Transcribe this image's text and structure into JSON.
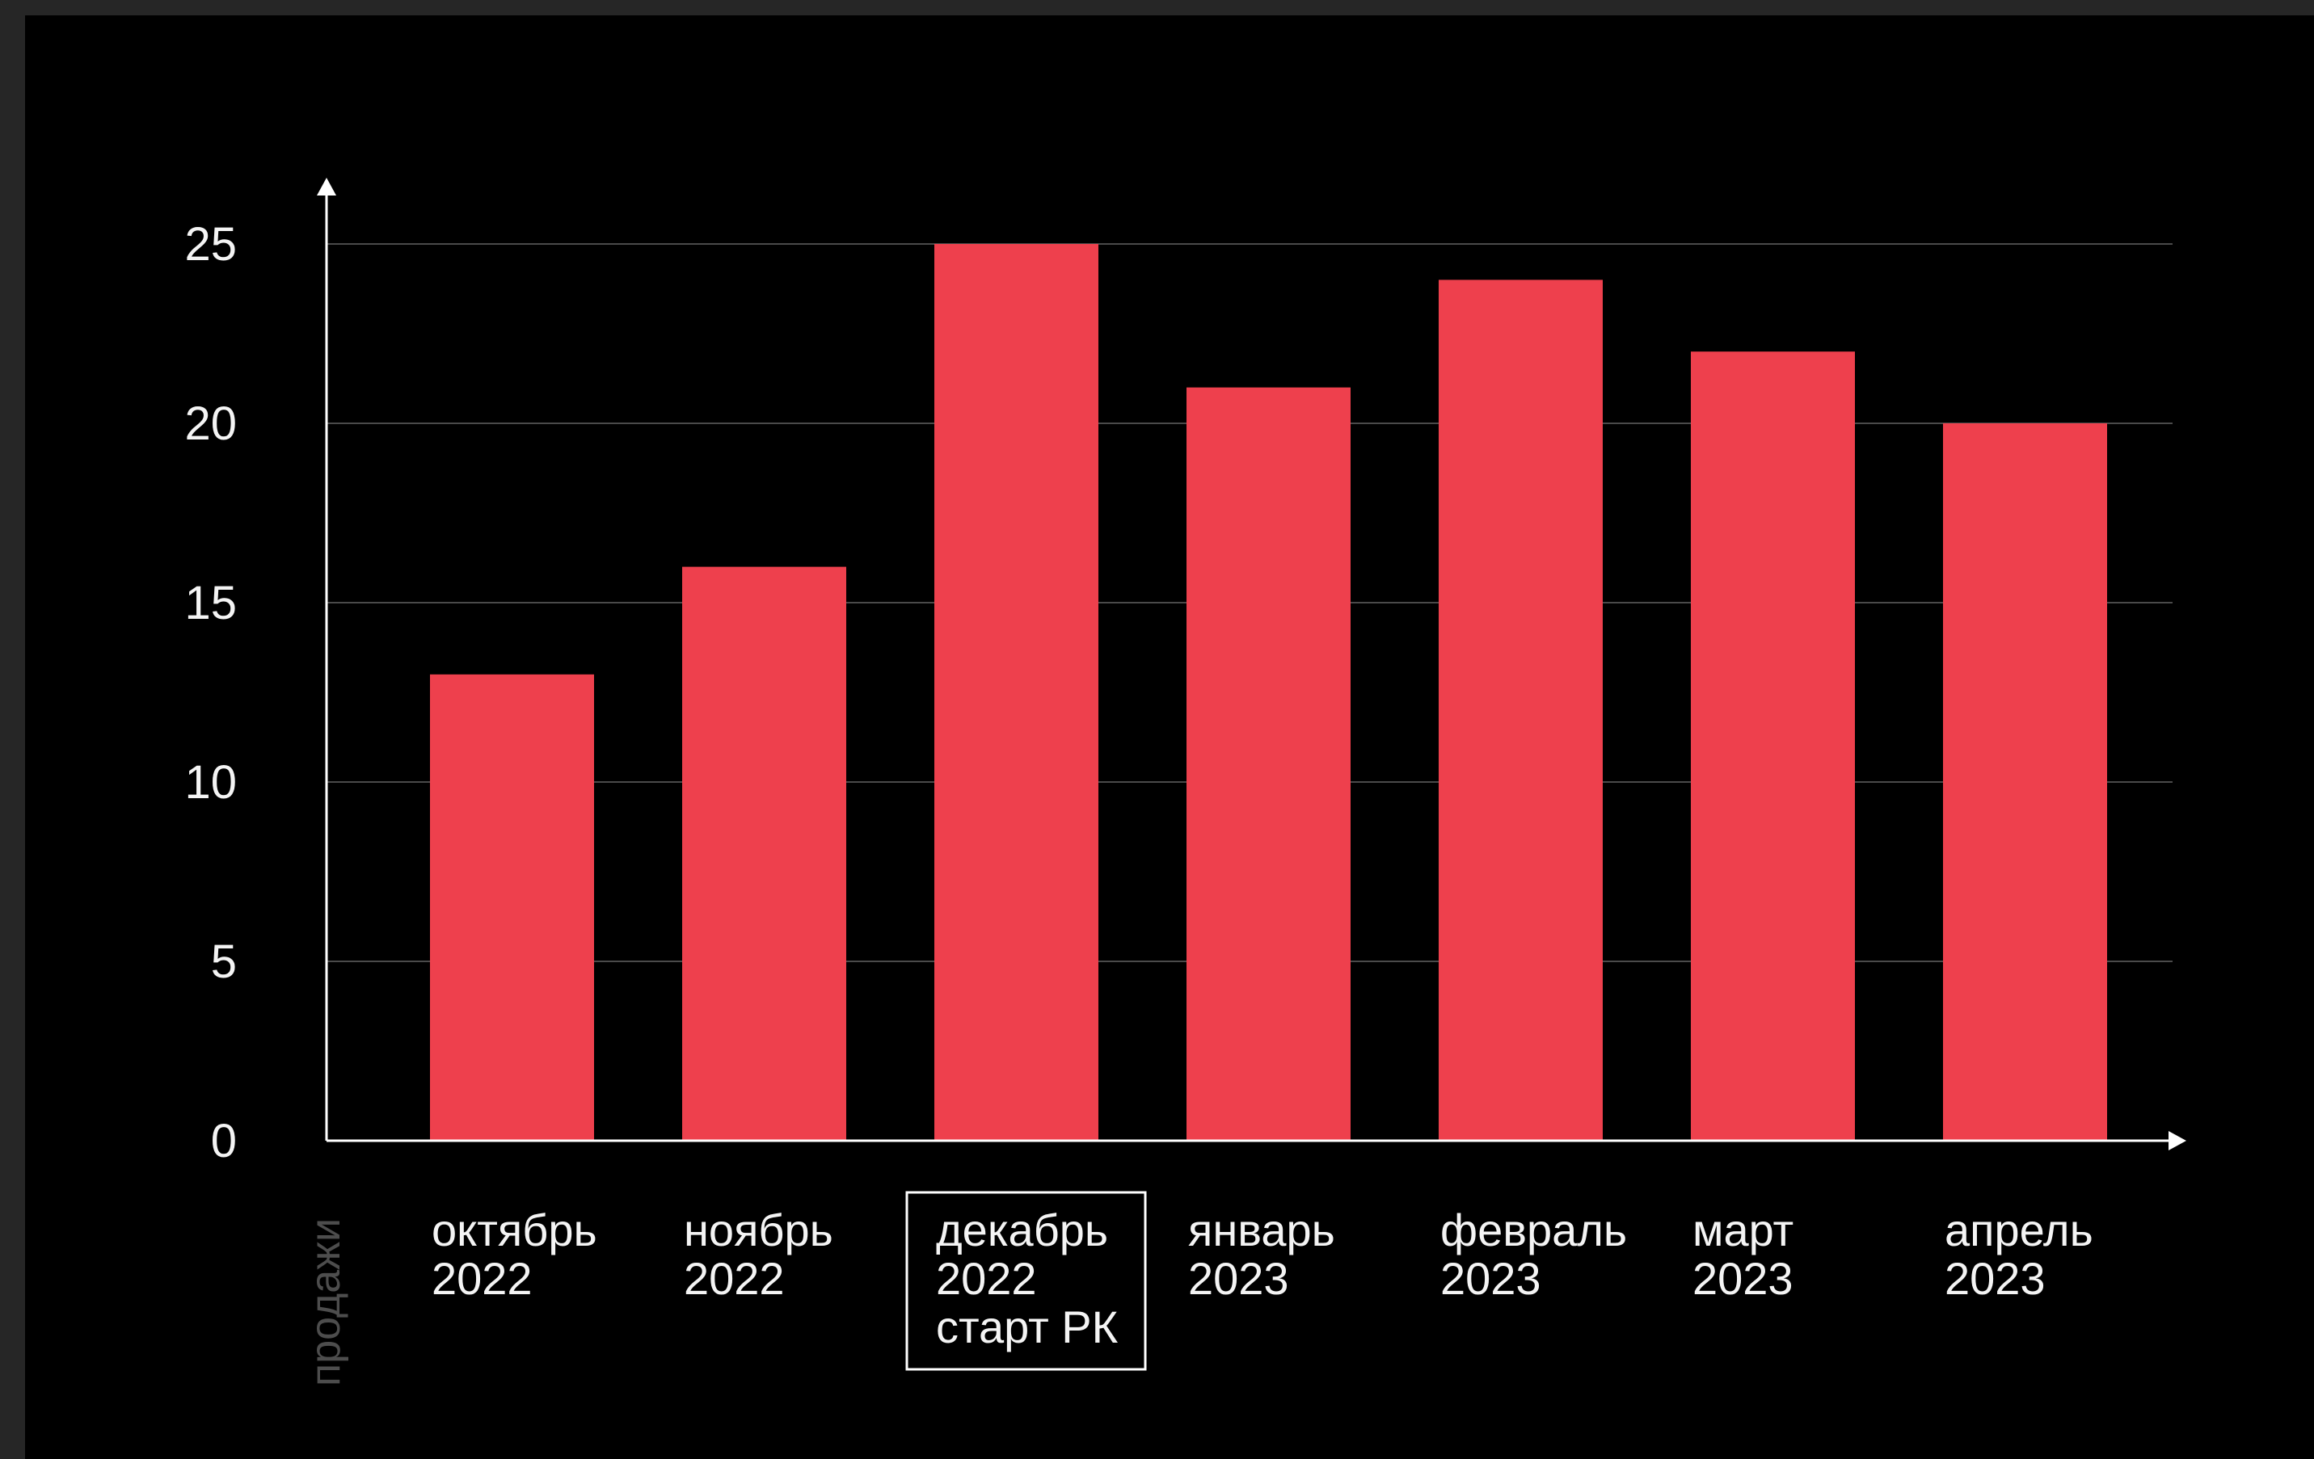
{
  "chart_data": {
    "type": "bar",
    "title": "",
    "xlabel": "",
    "ylabel": "продажи",
    "categories": [
      [
        "октябрь",
        "2022"
      ],
      [
        "ноябрь",
        "2022"
      ],
      [
        "декабрь",
        "2022",
        "старт РК"
      ],
      [
        "январь",
        "2023"
      ],
      [
        "февраль",
        "2023"
      ],
      [
        "март",
        "2023"
      ],
      [
        "апрель",
        "2023"
      ]
    ],
    "highlighted_category_index": 2,
    "values": [
      13,
      16,
      25,
      21,
      24,
      22,
      20
    ],
    "ylim": [
      0,
      25
    ],
    "yticks": [
      0,
      5,
      10,
      15,
      20,
      25
    ],
    "grid": true,
    "colors": {
      "background": "#000000",
      "bar": "#ee404d",
      "axis": "#ffffff",
      "grid": "#4a4a4a",
      "text": "#f4f4f4",
      "ylabel": "#4d4d4d"
    }
  }
}
